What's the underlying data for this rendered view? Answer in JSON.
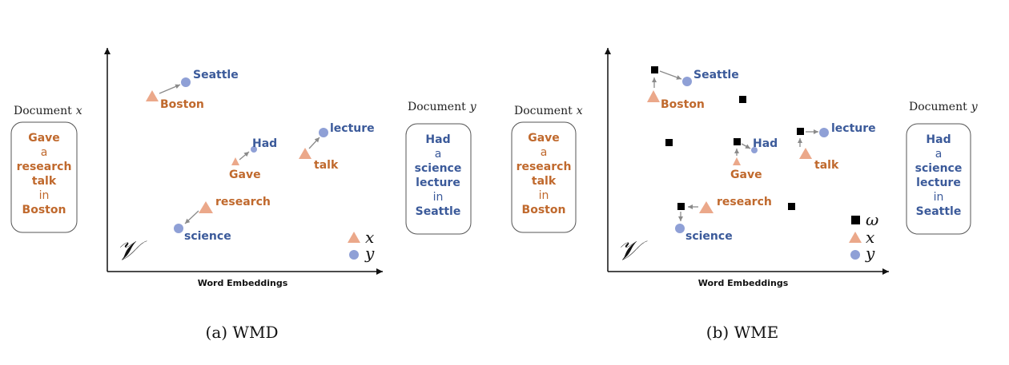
{
  "panels": [
    {
      "caption": "(a) WMD",
      "axis_label": "Word Embeddings",
      "space_label": "𝒱",
      "doc_x": {
        "title": "Document",
        "var": "x",
        "lines": [
          "Gave",
          "a",
          "research",
          "talk",
          "in",
          "Boston"
        ]
      },
      "doc_y": {
        "title": "Document",
        "var": "y",
        "lines": [
          "Had",
          "a",
          "science",
          "lecture",
          "in",
          "Seattle"
        ]
      },
      "words_x": [
        "Boston",
        "Gave",
        "talk",
        "research"
      ],
      "words_y": [
        "Seattle",
        "Had",
        "lecture",
        "science"
      ],
      "legend": [
        "x",
        "y"
      ]
    },
    {
      "caption": "(b) WME",
      "axis_label": "Word Embeddings",
      "space_label": "𝒱",
      "doc_x": {
        "title": "Document",
        "var": "x",
        "lines": [
          "Gave",
          "a",
          "research",
          "talk",
          "in",
          "Boston"
        ]
      },
      "doc_y": {
        "title": "Document",
        "var": "y",
        "lines": [
          "Had",
          "a",
          "science",
          "lecture",
          "in",
          "Seattle"
        ]
      },
      "words_x": [
        "Boston",
        "Gave",
        "talk",
        "research"
      ],
      "words_y": [
        "Seattle",
        "Had",
        "lecture",
        "science"
      ],
      "legend": [
        "ω",
        "x",
        "y"
      ]
    }
  ],
  "colors": {
    "doc_x_text": "#c0692d",
    "doc_y_text": "#3b5a9a",
    "triangle": "#eba88a",
    "circle": "#8fa0d6",
    "square": "#000000"
  }
}
